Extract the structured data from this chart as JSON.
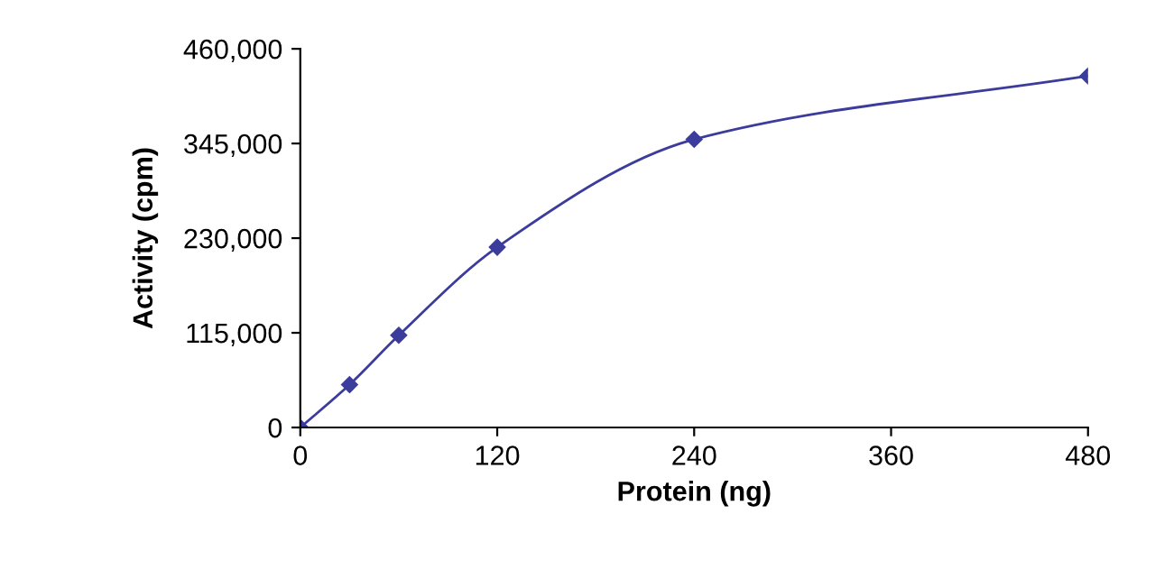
{
  "chart_data": {
    "type": "line",
    "xlabel": "Protein (ng)",
    "ylabel": "Activity (cpm)",
    "x": [
      0,
      30,
      60,
      120,
      240,
      480
    ],
    "series": [
      {
        "color": "#3c3c9c",
        "values": [
          0,
          52000,
          112000,
          219000,
          350000,
          427000
        ]
      }
    ],
    "xlim": [
      0,
      480
    ],
    "xticks": [
      0,
      120,
      240,
      360,
      480
    ],
    "ylim": [
      0,
      460000
    ],
    "yticks": [
      {
        "value": 0,
        "label": "0"
      },
      {
        "value": 115000,
        "label": "115,000"
      },
      {
        "value": 230000,
        "label": "230,000"
      },
      {
        "value": 345000,
        "label": "345,000"
      },
      {
        "value": 460000,
        "label": "460,000"
      }
    ],
    "marker": "diamond",
    "line_style": "solid",
    "grid": false,
    "legend": false
  }
}
